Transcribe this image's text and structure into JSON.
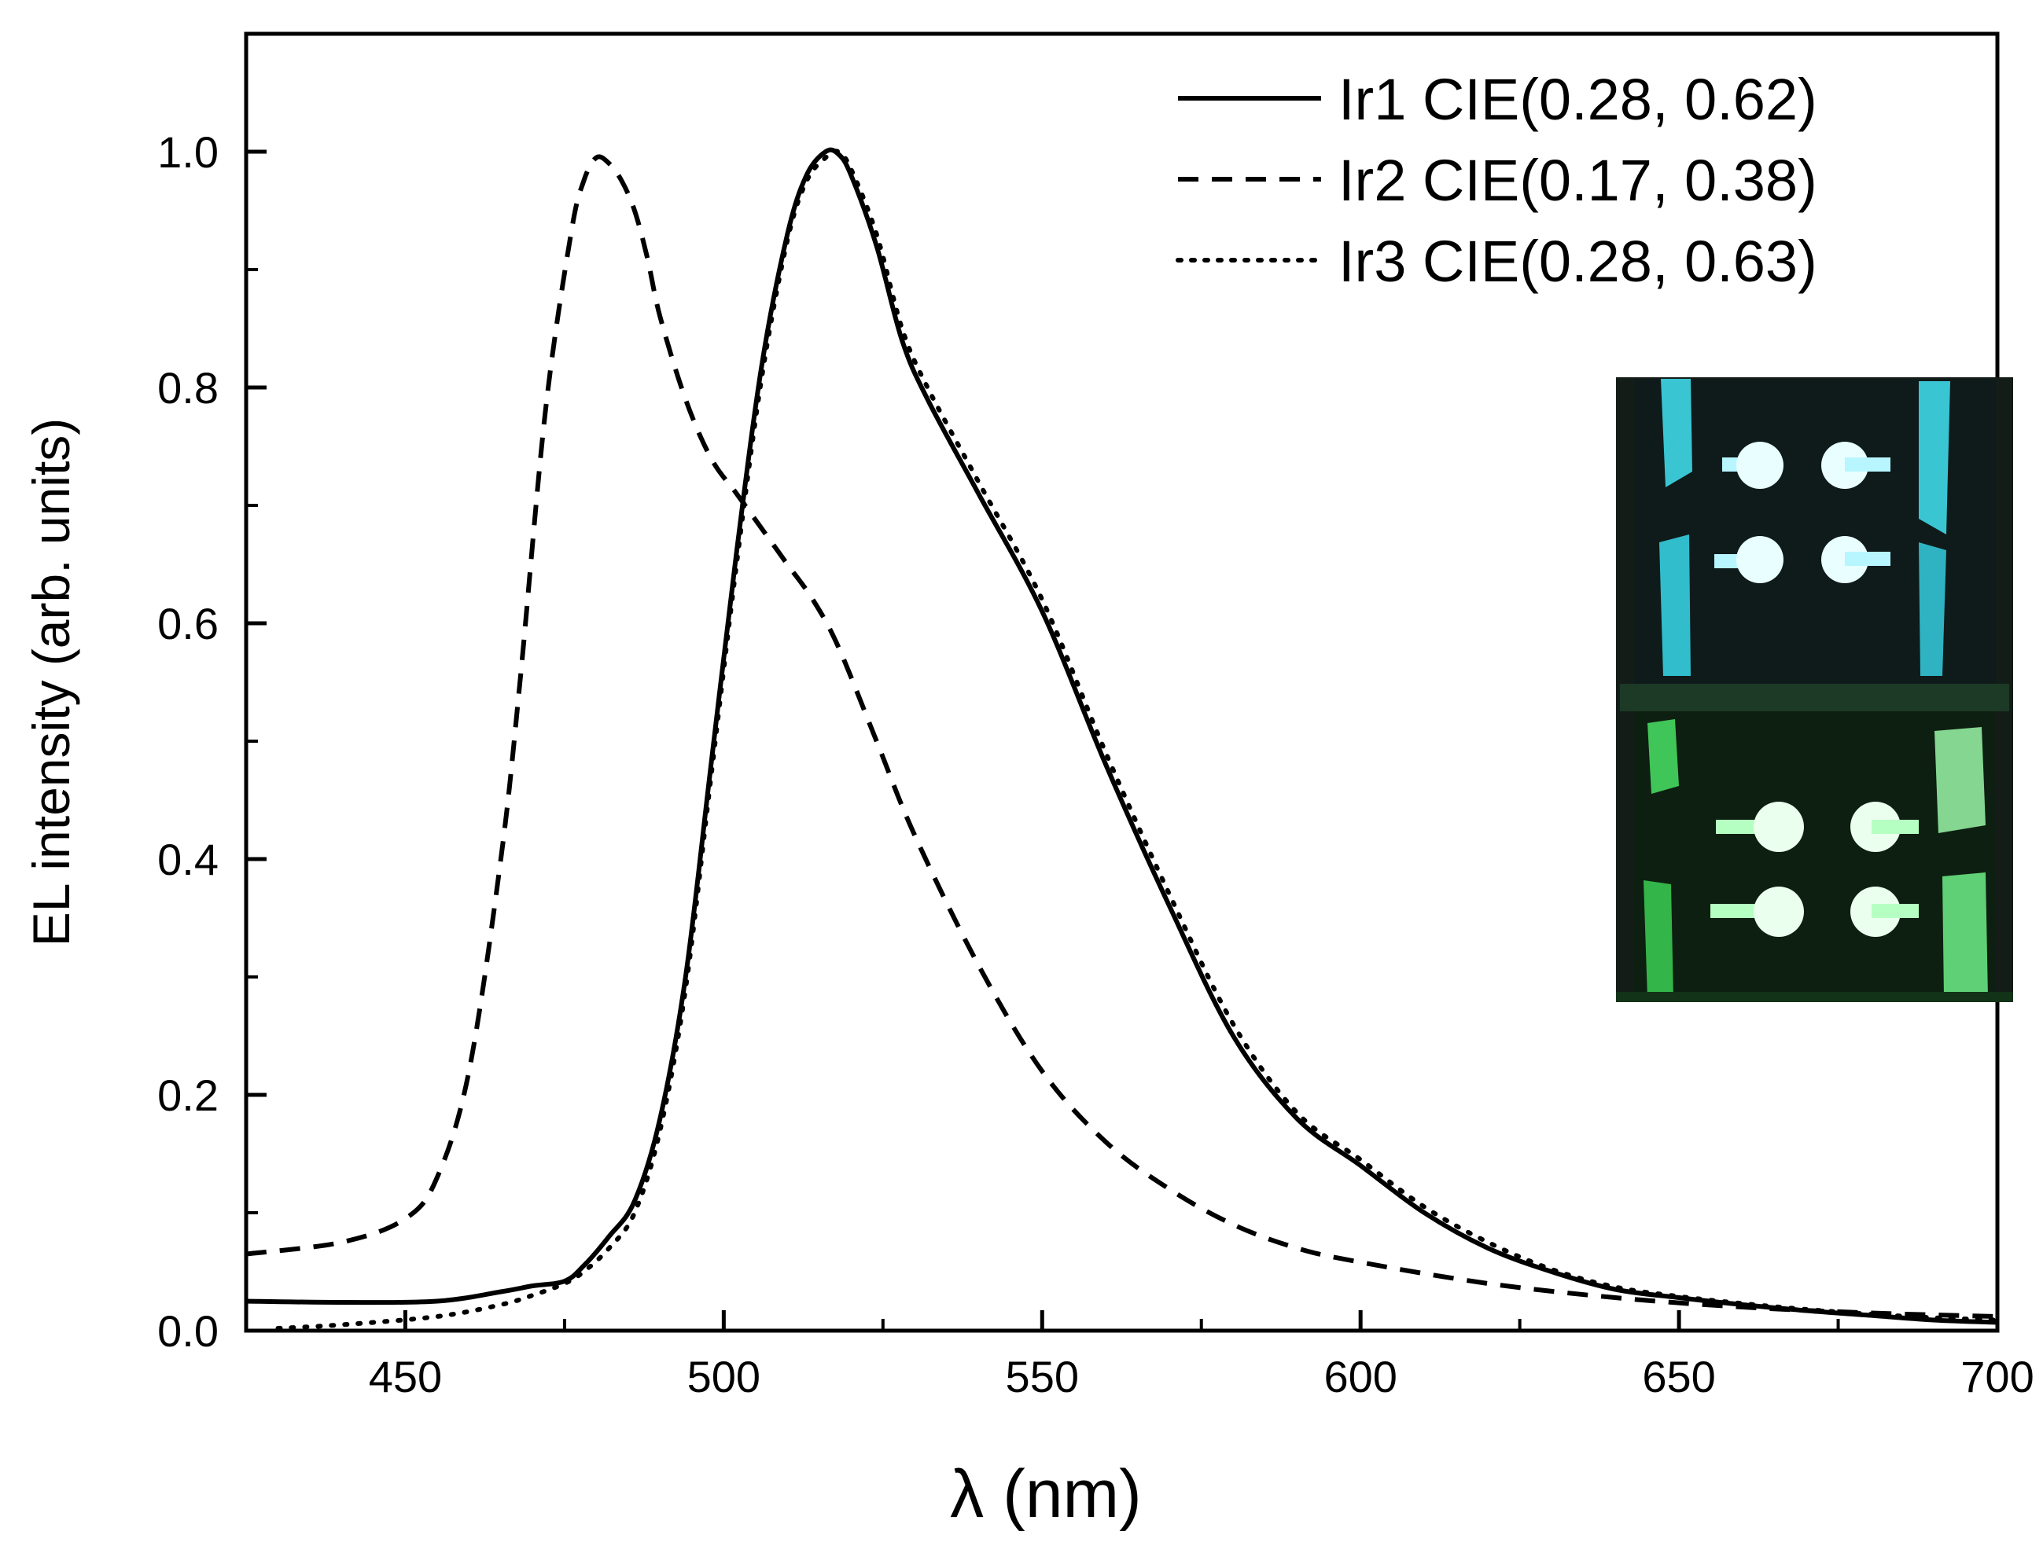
{
  "chart_data": {
    "type": "line",
    "title": "",
    "xlabel": "λ (nm)",
    "ylabel": "EL intensity (arb. units)",
    "xlim": [
      425,
      700
    ],
    "ylim": [
      0,
      1.1
    ],
    "xticks": [
      450,
      500,
      550,
      600,
      650,
      700
    ],
    "yticks": [
      0.0,
      0.2,
      0.4,
      0.6,
      0.8,
      1.0
    ],
    "xtick_labels": [
      "450",
      "500",
      "550",
      "600",
      "650",
      "700"
    ],
    "ytick_labels": [
      "0.0",
      "0.2",
      "0.4",
      "0.6",
      "0.8",
      "1.0"
    ],
    "legend_position": "top-right",
    "series": [
      {
        "name": "Ir1 CIE(0.28, 0.62)",
        "style": "solid",
        "x": [
          425,
          440,
          455,
          465,
          470,
          475,
          478,
          482,
          486,
          490,
          494,
          498,
          502,
          506,
          510,
          513,
          516,
          518,
          520,
          524,
          528,
          532,
          540,
          550,
          560,
          570,
          580,
          590,
          600,
          610,
          620,
          630,
          640,
          650,
          660,
          670,
          680,
          690,
          700
        ],
        "y": [
          0.025,
          0.024,
          0.025,
          0.033,
          0.038,
          0.042,
          0.055,
          0.08,
          0.11,
          0.18,
          0.3,
          0.48,
          0.66,
          0.82,
          0.93,
          0.98,
          1.0,
          0.998,
          0.98,
          0.92,
          0.84,
          0.79,
          0.71,
          0.61,
          0.48,
          0.36,
          0.25,
          0.18,
          0.14,
          0.1,
          0.07,
          0.05,
          0.035,
          0.028,
          0.022,
          0.017,
          0.013,
          0.009,
          0.007
        ]
      },
      {
        "name": "Ir2 CIE(0.17, 0.38)",
        "style": "dashed",
        "x": [
          425,
          440,
          450,
          455,
          460,
          465,
          468,
          472,
          476,
          478,
          480,
          482,
          484,
          486,
          488,
          490,
          494,
          498,
          502,
          506,
          510,
          514,
          518,
          524,
          530,
          540,
          550,
          560,
          570,
          580,
          590,
          600,
          620,
          640,
          660,
          680,
          700
        ],
        "y": [
          0.065,
          0.075,
          0.095,
          0.13,
          0.22,
          0.4,
          0.55,
          0.78,
          0.93,
          0.975,
          0.995,
          0.99,
          0.975,
          0.95,
          0.91,
          0.86,
          0.79,
          0.74,
          0.71,
          0.68,
          0.65,
          0.62,
          0.58,
          0.5,
          0.42,
          0.31,
          0.22,
          0.16,
          0.12,
          0.09,
          0.07,
          0.058,
          0.04,
          0.028,
          0.02,
          0.015,
          0.012
        ]
      },
      {
        "name": "Ir3 CIE(0.28, 0.63)",
        "style": "dotted",
        "x": [
          430,
          440,
          455,
          465,
          470,
          475,
          478,
          482,
          486,
          490,
          494,
          498,
          502,
          506,
          510,
          513,
          516,
          518,
          520,
          524,
          528,
          532,
          540,
          550,
          560,
          570,
          580,
          590,
          600,
          610,
          620,
          630,
          640,
          650,
          660,
          670,
          680,
          690,
          700
        ],
        "y": [
          0.002,
          0.005,
          0.012,
          0.022,
          0.03,
          0.04,
          0.05,
          0.07,
          0.1,
          0.17,
          0.29,
          0.47,
          0.65,
          0.81,
          0.925,
          0.975,
          0.995,
          1.0,
          0.985,
          0.93,
          0.85,
          0.8,
          0.72,
          0.62,
          0.49,
          0.37,
          0.26,
          0.185,
          0.145,
          0.105,
          0.075,
          0.052,
          0.037,
          0.029,
          0.023,
          0.018,
          0.014,
          0.011,
          0.009
        ]
      }
    ],
    "inset": {
      "description": "photo of emitting OLED devices",
      "top_color": "#39d5e6",
      "bottom_color": "#2ee84a"
    }
  }
}
